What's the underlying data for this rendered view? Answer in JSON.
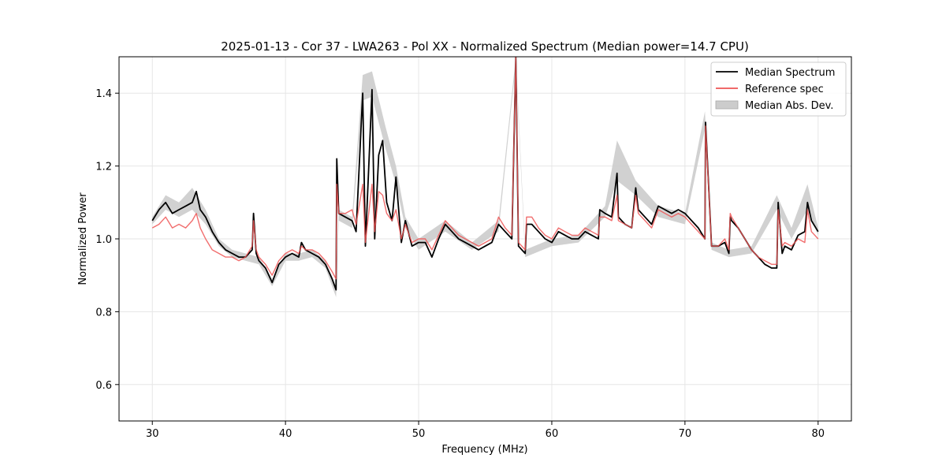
{
  "chart_data": {
    "type": "line",
    "title": "2025-01-13 - Cor 37 - LWA263 - Pol XX - Normalized Spectrum (Median power=14.7 CPU)",
    "xlabel": "Frequency (MHz)",
    "ylabel": "Normalized Power",
    "xlim": [
      27.5,
      82.5
    ],
    "ylim": [
      0.5,
      1.5
    ],
    "xticks": [
      30,
      40,
      50,
      60,
      70,
      80
    ],
    "yticks": [
      0.6,
      0.8,
      1.0,
      1.2,
      1.4
    ],
    "xtick_labels": [
      "30",
      "40",
      "50",
      "60",
      "70",
      "80"
    ],
    "ytick_labels": [
      "0.6",
      "0.8",
      "1.0",
      "1.2",
      "1.4"
    ],
    "grid": true,
    "legend_position": "top-right",
    "legend": [
      {
        "label": "Median Spectrum",
        "kind": "line",
        "color": "#000000"
      },
      {
        "label": "Reference spec",
        "kind": "line",
        "color": "#ee5555"
      },
      {
        "label": "Median Abs. Dev.",
        "kind": "patch",
        "color": "#cccccc"
      }
    ],
    "series": [
      {
        "name": "Median Spectrum",
        "color": "#000000",
        "x": [
          30.0,
          30.5,
          31.0,
          31.5,
          32.0,
          32.5,
          33.0,
          33.3,
          33.6,
          34.0,
          34.5,
          35.0,
          35.5,
          36.0,
          36.5,
          37.0,
          37.5,
          37.6,
          37.8,
          38.0,
          38.5,
          39.0,
          39.5,
          40.0,
          40.5,
          41.0,
          41.2,
          41.5,
          42.0,
          42.5,
          43.0,
          43.5,
          43.8,
          43.85,
          44.0,
          44.5,
          45.0,
          45.3,
          45.8,
          46.0,
          46.5,
          46.7,
          47.0,
          47.3,
          47.6,
          48.0,
          48.3,
          48.7,
          49.0,
          49.5,
          50.0,
          50.5,
          51.0,
          51.5,
          52.0,
          52.5,
          53.0,
          53.5,
          54.0,
          54.5,
          55.0,
          55.5,
          56.0,
          56.5,
          57.0,
          57.3,
          57.5,
          58.0,
          58.1,
          58.5,
          59.0,
          59.5,
          60.0,
          60.5,
          61.0,
          61.5,
          62.0,
          62.5,
          63.0,
          63.5,
          63.6,
          64.0,
          64.5,
          64.9,
          65.0,
          65.5,
          66.0,
          66.3,
          66.5,
          67.0,
          67.5,
          68.0,
          68.5,
          69.0,
          69.5,
          70.0,
          70.5,
          71.0,
          71.5,
          71.55,
          72.0,
          72.5,
          73.0,
          73.3,
          73.4,
          73.5,
          74.0,
          74.5,
          75.0,
          75.5,
          76.0,
          76.5,
          76.9,
          77.0,
          77.3,
          77.5,
          78.0,
          78.5,
          79.0,
          79.2,
          79.5,
          80.0
        ],
        "y": [
          1.05,
          1.08,
          1.1,
          1.07,
          1.08,
          1.09,
          1.1,
          1.13,
          1.08,
          1.06,
          1.02,
          0.99,
          0.97,
          0.96,
          0.95,
          0.95,
          0.97,
          1.07,
          0.96,
          0.94,
          0.92,
          0.88,
          0.93,
          0.95,
          0.96,
          0.95,
          0.99,
          0.97,
          0.96,
          0.95,
          0.93,
          0.89,
          0.86,
          1.22,
          1.07,
          1.06,
          1.05,
          1.02,
          1.4,
          0.98,
          1.41,
          1.0,
          1.23,
          1.27,
          1.1,
          1.05,
          1.17,
          0.99,
          1.05,
          0.98,
          0.99,
          0.99,
          0.95,
          1.0,
          1.04,
          1.02,
          1.0,
          0.99,
          0.98,
          0.97,
          0.98,
          0.99,
          1.04,
          1.02,
          1.0,
          1.5,
          0.98,
          0.96,
          1.04,
          1.04,
          1.02,
          1.0,
          0.99,
          1.02,
          1.01,
          1.0,
          1.0,
          1.02,
          1.01,
          1.0,
          1.08,
          1.07,
          1.06,
          1.18,
          1.06,
          1.04,
          1.03,
          1.14,
          1.08,
          1.06,
          1.04,
          1.09,
          1.08,
          1.07,
          1.08,
          1.07,
          1.05,
          1.03,
          1.0,
          1.32,
          0.98,
          0.98,
          0.99,
          0.96,
          1.06,
          1.05,
          1.03,
          1.0,
          0.97,
          0.95,
          0.93,
          0.92,
          0.92,
          1.1,
          0.96,
          0.98,
          0.97,
          1.01,
          1.02,
          1.1,
          1.05,
          1.02
        ]
      },
      {
        "name": "Reference spec",
        "color": "#ee5555",
        "x": [
          30.0,
          30.5,
          31.0,
          31.5,
          32.0,
          32.5,
          33.0,
          33.3,
          33.6,
          34.0,
          34.5,
          35.0,
          35.5,
          36.0,
          36.5,
          37.0,
          37.5,
          37.6,
          37.8,
          38.0,
          38.5,
          39.0,
          39.5,
          40.0,
          40.5,
          41.0,
          41.2,
          41.5,
          42.0,
          42.5,
          43.0,
          43.5,
          43.8,
          43.85,
          44.0,
          44.5,
          45.0,
          45.3,
          45.8,
          46.0,
          46.5,
          46.7,
          47.0,
          47.3,
          47.6,
          48.0,
          48.3,
          48.7,
          49.0,
          49.5,
          50.0,
          50.5,
          51.0,
          51.5,
          52.0,
          52.5,
          53.0,
          53.5,
          54.0,
          54.5,
          55.0,
          55.5,
          56.0,
          56.5,
          57.0,
          57.3,
          57.5,
          58.0,
          58.1,
          58.5,
          59.0,
          59.5,
          60.0,
          60.5,
          61.0,
          61.5,
          62.0,
          62.5,
          63.0,
          63.5,
          63.6,
          64.0,
          64.5,
          64.9,
          65.0,
          65.5,
          66.0,
          66.3,
          66.5,
          67.0,
          67.5,
          68.0,
          68.5,
          69.0,
          69.5,
          70.0,
          70.5,
          71.0,
          71.5,
          71.55,
          72.0,
          72.5,
          73.0,
          73.3,
          73.4,
          73.5,
          74.0,
          74.5,
          75.0,
          75.5,
          76.0,
          76.5,
          76.9,
          77.0,
          77.3,
          77.5,
          78.0,
          78.5,
          79.0,
          79.2,
          79.5,
          80.0
        ],
        "y": [
          1.03,
          1.04,
          1.06,
          1.03,
          1.04,
          1.03,
          1.05,
          1.07,
          1.03,
          1.0,
          0.97,
          0.96,
          0.95,
          0.95,
          0.94,
          0.95,
          0.98,
          1.05,
          0.97,
          0.95,
          0.93,
          0.9,
          0.94,
          0.96,
          0.97,
          0.96,
          0.98,
          0.97,
          0.97,
          0.96,
          0.94,
          0.91,
          0.89,
          1.15,
          1.07,
          1.07,
          1.08,
          1.04,
          1.15,
          0.99,
          1.15,
          1.02,
          1.13,
          1.12,
          1.07,
          1.05,
          1.08,
          1.0,
          1.04,
          0.99,
          1.0,
          1.0,
          0.97,
          1.01,
          1.05,
          1.03,
          1.01,
          1.0,
          0.99,
          0.98,
          0.99,
          1.0,
          1.06,
          1.03,
          1.01,
          1.5,
          0.99,
          0.97,
          1.06,
          1.06,
          1.03,
          1.01,
          1.0,
          1.03,
          1.02,
          1.01,
          1.01,
          1.03,
          1.02,
          1.01,
          1.06,
          1.06,
          1.05,
          1.12,
          1.05,
          1.04,
          1.03,
          1.12,
          1.07,
          1.05,
          1.03,
          1.08,
          1.07,
          1.06,
          1.07,
          1.06,
          1.04,
          1.02,
          1.0,
          1.31,
          0.98,
          0.98,
          1.0,
          0.97,
          1.07,
          1.06,
          1.03,
          1.0,
          0.97,
          0.95,
          0.94,
          0.93,
          0.93,
          1.08,
          0.98,
          0.99,
          0.98,
          1.0,
          0.99,
          1.08,
          1.02,
          1.0
        ]
      }
    ],
    "band": {
      "name": "Median Abs. Dev.",
      "color": "#cccccc",
      "x": [
        30.0,
        31.0,
        32.0,
        33.0,
        34.0,
        35.0,
        36.0,
        37.0,
        38.0,
        39.0,
        40.0,
        41.0,
        42.0,
        43.0,
        43.8,
        44.0,
        45.0,
        45.8,
        46.5,
        47.5,
        48.3,
        49.0,
        50.0,
        52.0,
        54.0,
        56.0,
        57.3,
        58.0,
        60.0,
        62.0,
        64.0,
        64.9,
        66.3,
        68.0,
        70.0,
        71.5,
        72.0,
        73.3,
        75.0,
        76.9,
        78.0,
        79.2,
        80.0
      ],
      "lower": [
        1.04,
        1.08,
        1.06,
        1.08,
        1.04,
        0.98,
        0.95,
        0.94,
        0.93,
        0.87,
        0.94,
        0.94,
        0.95,
        0.92,
        0.84,
        1.05,
        1.03,
        1.38,
        1.39,
        1.25,
        1.15,
        1.03,
        0.97,
        1.02,
        0.97,
        1.02,
        1.48,
        0.95,
        0.98,
        0.99,
        1.06,
        1.16,
        1.12,
        1.06,
        1.04,
        1.3,
        0.97,
        0.95,
        0.96,
        1.08,
        1.0,
        1.08,
        1.01
      ],
      "upper": [
        1.06,
        1.12,
        1.1,
        1.14,
        1.08,
        1.0,
        0.97,
        0.96,
        0.95,
        0.89,
        0.96,
        0.96,
        0.97,
        0.94,
        0.87,
        1.08,
        1.06,
        1.45,
        1.46,
        1.31,
        1.2,
        1.06,
        1.0,
        1.05,
        0.99,
        1.05,
        1.5,
        0.97,
        1.0,
        1.01,
        1.09,
        1.27,
        1.16,
        1.09,
        1.07,
        1.35,
        0.99,
        0.97,
        0.98,
        1.12,
        1.03,
        1.15,
        1.03
      ]
    }
  }
}
